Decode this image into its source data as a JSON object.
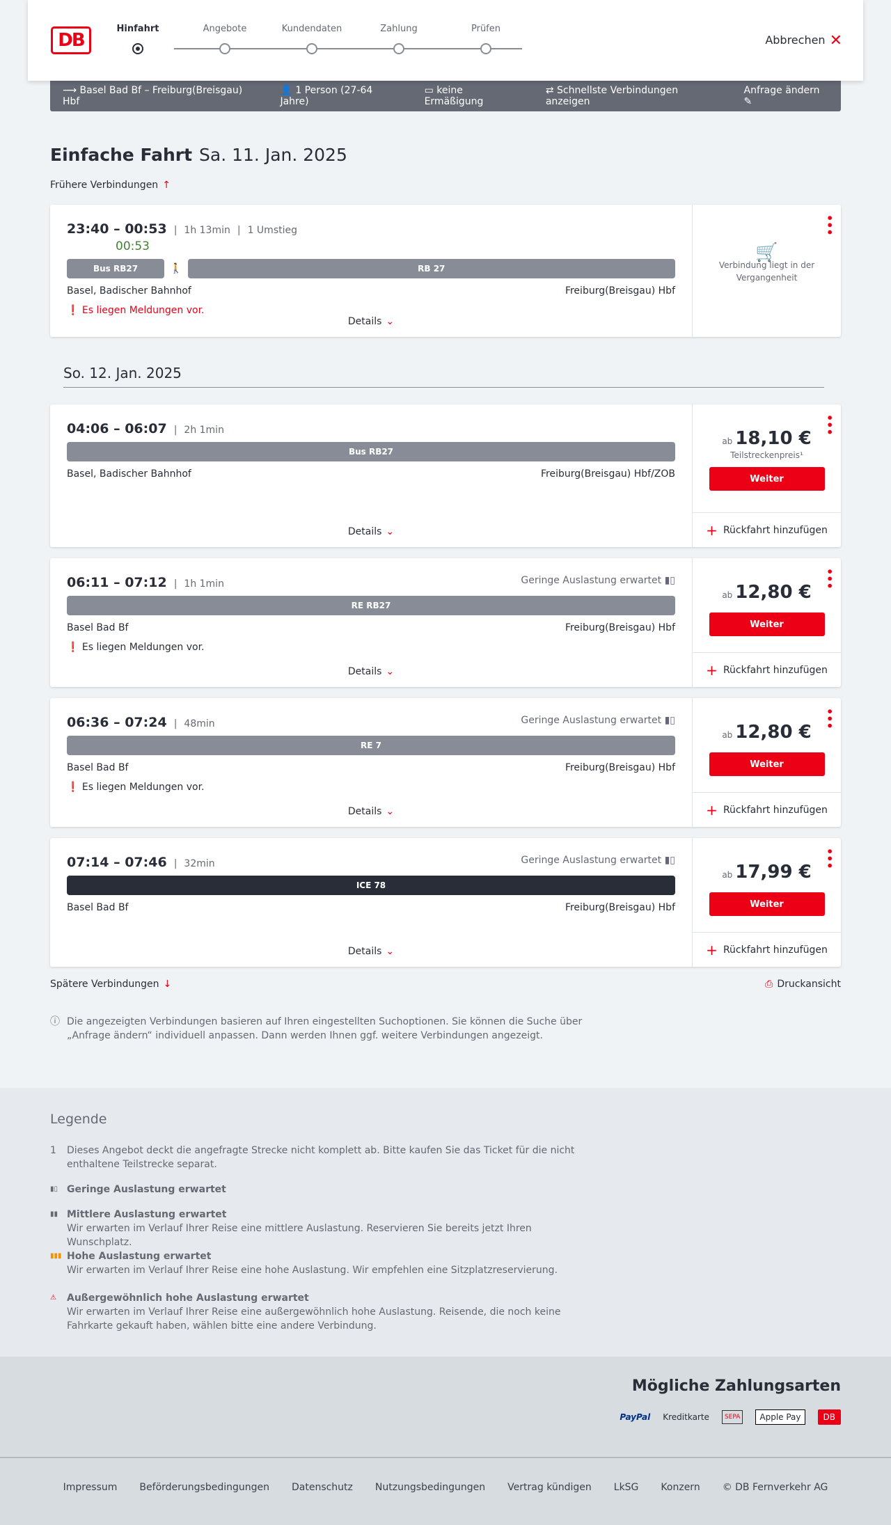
{
  "header": {
    "logo": "DB",
    "steps": [
      "Hinfahrt",
      "Angebote",
      "Kundendaten",
      "Zahlung",
      "Prüfen"
    ],
    "active_step": 0,
    "cancel": "Abbrechen"
  },
  "summary": {
    "route": "Basel Bad Bf – Freiburg(Breisgau) Hbf",
    "persons": "1 Person (27-64 Jahre)",
    "discount": "keine Ermäßigung",
    "fastest": "Schnellste Verbindungen anzeigen",
    "edit": "Anfrage ändern"
  },
  "title": {
    "main": "Einfache Fahrt",
    "date": "Sa. 11. Jan. 2025"
  },
  "earlier": "Frühere Verbindungen",
  "later": "Spätere Verbindungen",
  "print": "Druckansicht",
  "date2": "So. 12. Jan. 2025",
  "details": "Details",
  "add_return": "Rückfahrt hinzufügen",
  "continue": "Weiter",
  "from_label": "ab",
  "connections": [
    {
      "times": "23:40 – 00:53",
      "duration": "1h 13min",
      "changes": "1 Umstieg",
      "realtime": "00:53",
      "legs": [
        {
          "label": "Bus RB27",
          "flex": 1
        },
        {
          "label": "walk"
        },
        {
          "label": "RB 27",
          "flex": 5
        }
      ],
      "from": "Basel, Badischer Bahnhof",
      "to": "Freiburg(Breisgau) Hbf",
      "message": "Es liegen Meldungen vor.",
      "message_red": true,
      "past": "Verbindung liegt in der Vergangenheit"
    },
    {
      "times": "04:06 – 06:07",
      "duration": "2h 1min",
      "legs": [
        {
          "label": "Bus RB27",
          "flex": 1
        }
      ],
      "from": "Basel, Badischer Bahnhof",
      "to": "Freiburg(Breisgau) Hbf/ZOB",
      "price": "18,10 €",
      "price_note": "Teilstreckenpreis¹"
    },
    {
      "times": "06:11 – 07:12",
      "duration": "1h 1min",
      "occupancy": "Geringe Auslastung erwartet",
      "legs": [
        {
          "label": "RE RB27",
          "flex": 1
        }
      ],
      "from": "Basel Bad Bf",
      "to": "Freiburg(Breisgau) Hbf",
      "message": "Es liegen Meldungen vor.",
      "price": "12,80 €"
    },
    {
      "times": "06:36 – 07:24",
      "duration": "48min",
      "occupancy": "Geringe Auslastung erwartet",
      "legs": [
        {
          "label": "RE 7",
          "flex": 1
        }
      ],
      "from": "Basel Bad Bf",
      "to": "Freiburg(Breisgau) Hbf",
      "message": "Es liegen Meldungen vor.",
      "price": "12,80 €"
    },
    {
      "times": "07:14 – 07:46",
      "duration": "32min",
      "occupancy": "Geringe Auslastung erwartet",
      "legs": [
        {
          "label": "ICE 78",
          "flex": 1,
          "dark": true
        }
      ],
      "from": "Basel Bad Bf",
      "to": "Freiburg(Breisgau) Hbf",
      "price": "17,99 €"
    }
  ],
  "info": "Die angezeigten Verbindungen basieren auf Ihren eingestellten Suchoptionen. Sie können die Suche über „Anfrage ändern“ individuell anpassen. Dann werden Ihnen ggf. weitere Verbindungen angezeigt.",
  "legend": {
    "title": "Legende",
    "items": [
      {
        "mark": "1",
        "text": "Dieses Angebot deckt die angefragte Strecke nicht komplett ab. Bitte kaufen Sie das Ticket für die nicht enthaltene Teilstrecke separat."
      },
      {
        "mark": "low",
        "title": "Geringe Auslastung erwartet",
        "color": "#646973"
      },
      {
        "mark": "mid",
        "title": "Mittlere Auslastung erwartet",
        "text": "Wir erwarten im Verlauf Ihrer Reise eine mittlere Auslastung. Reservieren Sie bereits jetzt Ihren Wunschplatz.",
        "color": "#646973"
      },
      {
        "mark": "high",
        "title": "Hohe Auslastung erwartet",
        "text": "Wir erwarten im Verlauf Ihrer Reise eine hohe Auslastung. Wir empfehlen eine Sitzplatzreservierung.",
        "color": "#f39200"
      },
      {
        "mark": "extreme",
        "title": "Außergewöhnlich hohe Auslastung erwartet",
        "text": "Wir erwarten im Verlauf Ihrer Reise eine außergewöhnlich hohe Auslastung. Reisende, die noch keine Fahrkarte gekauft haben, wählen bitte eine andere Verbindung.",
        "color": "#ec0016"
      }
    ]
  },
  "payment": {
    "title": "Mögliche Zahlungsarten",
    "methods": [
      "PayPal",
      "Kreditkarte",
      "SEPA",
      "Apple Pay",
      "DB"
    ]
  },
  "footer": [
    "Impressum",
    "Beförderungsbedingungen",
    "Datenschutz",
    "Nutzungsbedingungen",
    "Vertrag kündigen",
    "LkSG",
    "Konzern",
    "© DB Fernverkehr AG"
  ]
}
